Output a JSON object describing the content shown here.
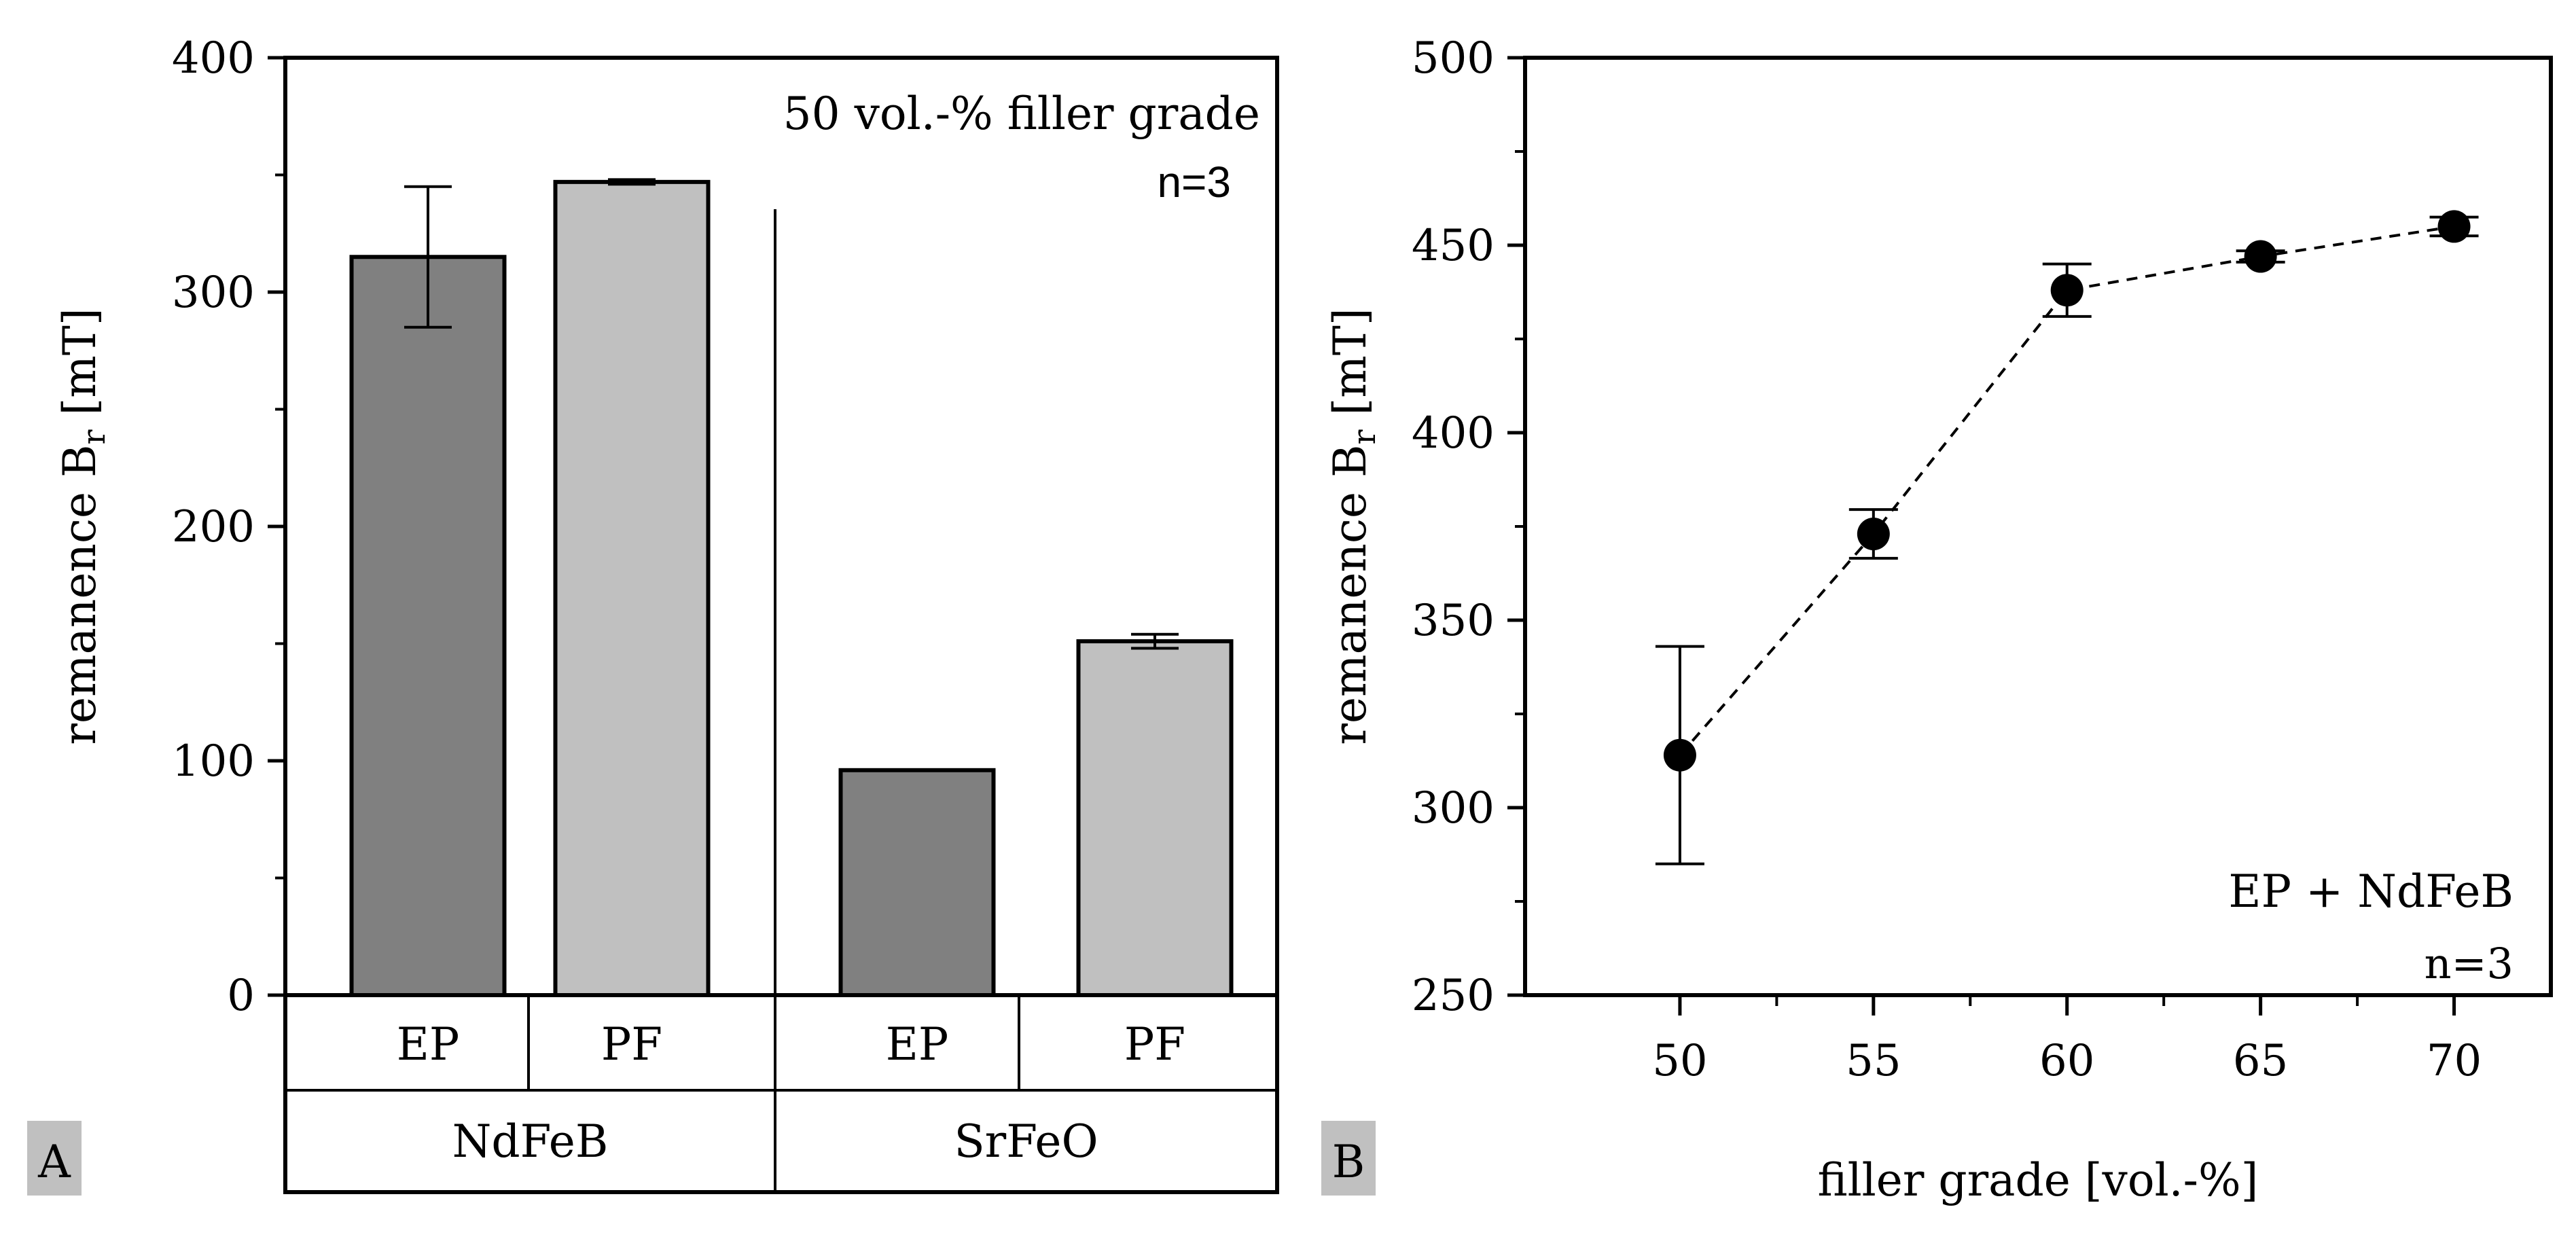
{
  "chart_data": [
    {
      "panel": "A",
      "type": "bar",
      "ylabel": "remanence B",
      "ylabel_sub": "r",
      "ylabel_unit": " [mT]",
      "ylim": [
        0,
        400
      ],
      "yticks": [
        "0",
        "100",
        "200",
        "300",
        "400"
      ],
      "annotation": "50 vol.-% filler grade",
      "n_label": "n=3",
      "groups": [
        {
          "name": "NdFeB",
          "bars": [
            {
              "category": "EP",
              "value": 315,
              "error": 30,
              "color": "#808080"
            },
            {
              "category": "PF",
              "value": 347,
              "error": 1,
              "color": "#c0c0c0"
            }
          ]
        },
        {
          "name": "SrFeO",
          "bars": [
            {
              "category": "EP",
              "value": 96,
              "error": 0,
              "color": "#808080"
            },
            {
              "category": "PF",
              "value": 151,
              "error": 3,
              "color": "#c0c0c0"
            }
          ]
        }
      ]
    },
    {
      "panel": "B",
      "type": "scatter",
      "line_style": "dashed",
      "xlabel": "filler grade [vol.-%]",
      "ylabel": "remanence B",
      "ylabel_sub": "r",
      "ylabel_unit": " [mT]",
      "xlim": [
        46,
        72.5
      ],
      "ylim": [
        250,
        500
      ],
      "xticks": [
        "50",
        "55",
        "60",
        "65",
        "70"
      ],
      "yticks": [
        "250",
        "300",
        "350",
        "400",
        "450",
        "500"
      ],
      "annotation": "EP + NdFeB",
      "n_label": "n=3",
      "points": [
        {
          "x": 50,
          "y": 314,
          "error": 29
        },
        {
          "x": 55,
          "y": 373,
          "error": 6.5
        },
        {
          "x": 60,
          "y": 438,
          "error": 7
        },
        {
          "x": 65,
          "y": 447,
          "error": 1.5
        },
        {
          "x": 70,
          "y": 455,
          "error": 2.5
        }
      ]
    }
  ]
}
